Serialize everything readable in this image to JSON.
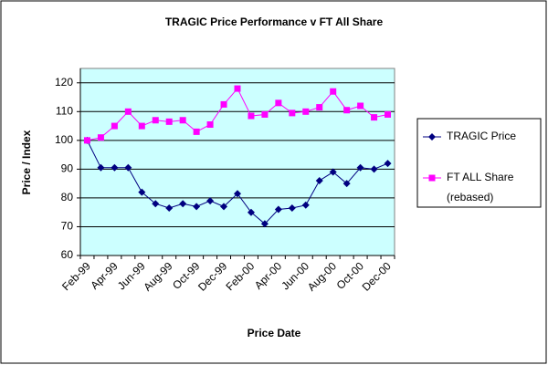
{
  "chart_data": {
    "type": "line",
    "title": "TRAGIC Price Performance v FT All Share",
    "x_label": "Price Date",
    "y_label": "Price / Index",
    "categories": [
      "Feb-99",
      null,
      "Apr-99",
      null,
      "Jun-99",
      null,
      "Aug-99",
      null,
      "Oct-99",
      null,
      "Dec-99",
      null,
      "Feb-00",
      null,
      "Apr-00",
      null,
      "Jun-00",
      null,
      "Aug-00",
      null,
      "Oct-00",
      null,
      "Dec-00"
    ],
    "series": [
      {
        "name": "TRAGIC Price",
        "color": "#000080",
        "marker": "diamond",
        "values": [
          100,
          90.5,
          90.5,
          90.5,
          82,
          78,
          76.5,
          78,
          77,
          79,
          77,
          81.5,
          75,
          71,
          76,
          76.5,
          77.5,
          86,
          89,
          85,
          90.5,
          90,
          92
        ]
      },
      {
        "name": "FT ALL Share (rebased)",
        "color": "#ff00ff",
        "marker": "square",
        "values": [
          100,
          101,
          105,
          110,
          105,
          107,
          106.5,
          107,
          103,
          105.5,
          112.5,
          118,
          108.5,
          109,
          113,
          109.5,
          110,
          111.5,
          117,
          110.5,
          112,
          108,
          109
        ]
      }
    ],
    "ylim": [
      60,
      125
    ],
    "yticks": [
      60,
      70,
      80,
      90,
      100,
      110,
      120
    ],
    "grid": true,
    "legend": "right",
    "plot_background": "#ccffff"
  }
}
